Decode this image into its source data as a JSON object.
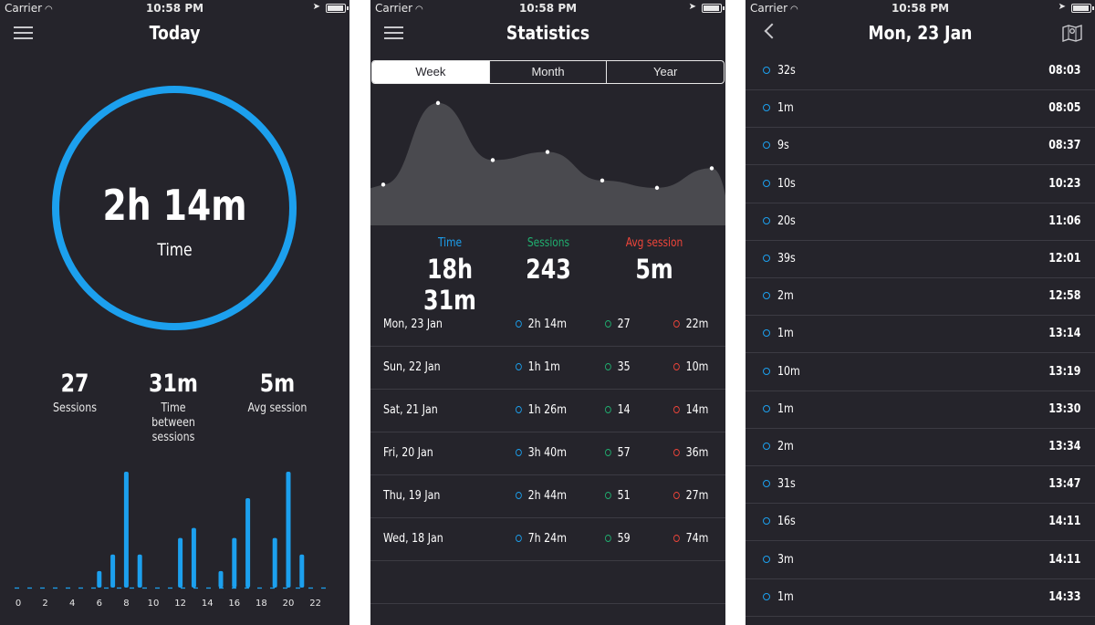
{
  "colors": {
    "background": "#25242b",
    "time": "#1ca0ee",
    "sessions": "#20b070",
    "avg": "#f0453a",
    "divider": "#3c3b43"
  },
  "status_bar": {
    "carrier": "Carrier",
    "time": "10:58 PM"
  },
  "today": {
    "title": "Today",
    "ring_value": "2h 14m",
    "ring_label": "Time",
    "stats": [
      {
        "value": "27",
        "label": "Sessions"
      },
      {
        "value": "31m",
        "label": "Time between sessions"
      },
      {
        "value": "5m",
        "label": "Avg session"
      }
    ],
    "hourly_chart": {
      "type": "bar",
      "hours": [
        0,
        1,
        2,
        3,
        4,
        5,
        6,
        7,
        8,
        9,
        10,
        11,
        12,
        13,
        14,
        15,
        16,
        17,
        18,
        19,
        20,
        21,
        22,
        23
      ],
      "values": [
        0,
        0,
        0,
        0,
        0,
        0,
        1,
        2,
        7,
        2,
        0,
        0,
        3,
        3.6,
        0,
        1,
        3,
        5.4,
        0,
        3,
        7,
        2,
        0,
        0
      ],
      "tick_labels": [
        "0",
        "2",
        "4",
        "6",
        "8",
        "10",
        "12",
        "14",
        "16",
        "18",
        "20",
        "22"
      ]
    }
  },
  "statistics": {
    "title": "Statistics",
    "tabs": [
      {
        "label": "Week",
        "active": true
      },
      {
        "label": "Month",
        "active": false
      },
      {
        "label": "Year",
        "active": false
      }
    ],
    "week_chart": {
      "type": "area",
      "values": [
        5,
        15,
        8,
        9,
        5.5,
        4.6,
        7
      ],
      "ymax": 17
    },
    "totals": [
      {
        "label": "Time",
        "value": "18h 31m",
        "color": "#1ca0ee"
      },
      {
        "label": "Sessions",
        "value": "243",
        "color": "#20b070"
      },
      {
        "label": "Avg session",
        "value": "5m",
        "color": "#f0453a"
      }
    ],
    "days": [
      {
        "date": "Mon, 23 Jan",
        "time": "2h 14m",
        "sessions": "27",
        "avg": "22m"
      },
      {
        "date": "Sun, 22 Jan",
        "time": "1h 1m",
        "sessions": "35",
        "avg": "10m"
      },
      {
        "date": "Sat, 21 Jan",
        "time": "1h 26m",
        "sessions": "14",
        "avg": "14m"
      },
      {
        "date": "Fri, 20 Jan",
        "time": "3h 40m",
        "sessions": "57",
        "avg": "36m"
      },
      {
        "date": "Thu, 19 Jan",
        "time": "2h 44m",
        "sessions": "51",
        "avg": "27m"
      },
      {
        "date": "Wed, 18 Jan",
        "time": "7h 24m",
        "sessions": "59",
        "avg": "74m"
      }
    ]
  },
  "day_detail": {
    "title": "Mon, 23 Jan",
    "sessions": [
      {
        "duration": "32s",
        "time": "08:03"
      },
      {
        "duration": "1m",
        "time": "08:05"
      },
      {
        "duration": "9s",
        "time": "08:37"
      },
      {
        "duration": "10s",
        "time": "10:23"
      },
      {
        "duration": "20s",
        "time": "11:06"
      },
      {
        "duration": "39s",
        "time": "12:01"
      },
      {
        "duration": "2m",
        "time": "12:58"
      },
      {
        "duration": "1m",
        "time": "13:14"
      },
      {
        "duration": "10m",
        "time": "13:19"
      },
      {
        "duration": "1m",
        "time": "13:30"
      },
      {
        "duration": "2m",
        "time": "13:34"
      },
      {
        "duration": "31s",
        "time": "13:47"
      },
      {
        "duration": "16s",
        "time": "14:11"
      },
      {
        "duration": "3m",
        "time": "14:11"
      },
      {
        "duration": "1m",
        "time": "14:33"
      }
    ]
  }
}
